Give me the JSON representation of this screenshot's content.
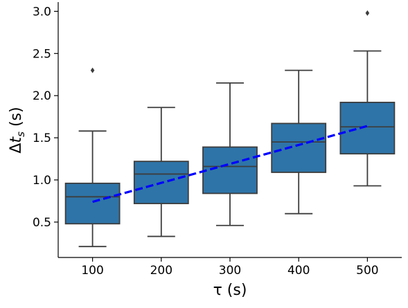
{
  "chart_data": {
    "type": "box",
    "xlabel": "τ (s)",
    "ylabel_parts": [
      "Δ",
      "t",
      "s",
      " (s)"
    ],
    "x_ticks": [
      "100",
      "200",
      "300",
      "400",
      "500"
    ],
    "y_ticks": [
      "0.5",
      "1.0",
      "1.5",
      "2.0",
      "2.5",
      "3.0"
    ],
    "ylim": [
      0.08,
      3.11
    ],
    "box_color": "#2e74a8",
    "edge_color": "#3d3d3d",
    "trend_color": "#0000ff",
    "grid": false,
    "categories": [
      "100",
      "200",
      "300",
      "400",
      "500"
    ],
    "boxes": [
      {
        "category": "100",
        "whisker_low": 0.21,
        "q1": 0.48,
        "median": 0.8,
        "q3": 0.96,
        "whisker_high": 1.58,
        "outliers": [
          2.3
        ]
      },
      {
        "category": "200",
        "whisker_low": 0.33,
        "q1": 0.72,
        "median": 1.07,
        "q3": 1.22,
        "whisker_high": 1.86,
        "outliers": []
      },
      {
        "category": "300",
        "whisker_low": 0.46,
        "q1": 0.84,
        "median": 1.16,
        "q3": 1.39,
        "whisker_high": 2.15,
        "outliers": []
      },
      {
        "category": "400",
        "whisker_low": 0.6,
        "q1": 1.09,
        "median": 1.45,
        "q3": 1.67,
        "whisker_high": 2.3,
        "outliers": []
      },
      {
        "category": "500",
        "whisker_low": 0.93,
        "q1": 1.31,
        "median": 1.63,
        "q3": 1.92,
        "whisker_high": 2.53,
        "outliers": [
          2.98
        ]
      }
    ],
    "trend_line": {
      "style": "dashed",
      "x": [
        "100",
        "500"
      ],
      "y": [
        0.74,
        1.64
      ]
    }
  }
}
